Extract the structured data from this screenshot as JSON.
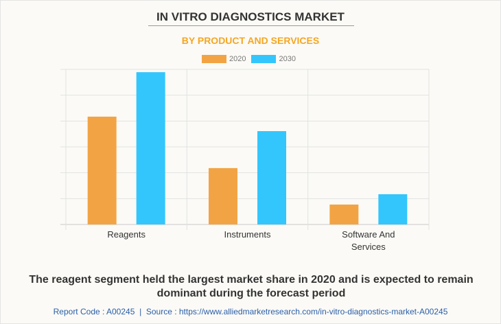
{
  "title": "IN VITRO DIAGNOSTICS MARKET",
  "subtitle": "BY PRODUCT AND SERVICES",
  "caption": "The reagent segment held the largest market share in 2020 and is expected to remain dominant during the forecast period",
  "footer": {
    "report_code": "Report Code : A00245",
    "separator": "|",
    "source": "Source : https://www.alliedmarketresearch.com/in-vitro-diagnostics-market-A00245"
  },
  "chart_data": {
    "type": "bar",
    "categories": [
      "Reagents",
      "Instruments",
      "Software And Services"
    ],
    "series": [
      {
        "name": "2020",
        "color": "#f2a444",
        "values": [
          4.17,
          2.18,
          0.77
        ]
      },
      {
        "name": "2030",
        "color": "#33c6fd",
        "values": [
          5.89,
          3.61,
          1.17
        ]
      }
    ],
    "ylim": [
      0,
      6
    ],
    "y_ticks_labeled": false,
    "grid": true,
    "legend": "top-center",
    "xlabel": "",
    "ylabel": ""
  }
}
